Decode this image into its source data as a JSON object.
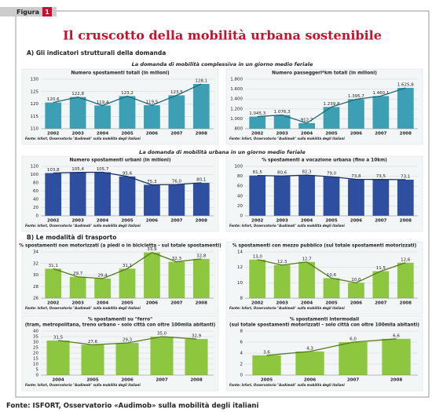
{
  "figure_label": "Figura",
  "figure_number": "1",
  "title": "Il cruscotto della mobilità urbana sostenibile",
  "section_a": "A) Gli indicatori strutturali della domanda",
  "subtitle_a1": "La domanda di mobilità complessiva in un giorno medio feriale",
  "subtitle_a2": "La domanda di mobilità urbana in un giorno medio feriale",
  "section_b": "B) Le modalità di trasporto",
  "footer": "Fonte: ISFORT, Osservatorio «Audimob» sulla mobilità degli italiani",
  "chart_data": [
    {
      "type": "bar",
      "title": "Numero spostamenti totali (in milioni)",
      "source": "Fonte: Isfort, Osservatorio \"Audimob\" sulla mobilità degli italiani",
      "categories": [
        "2002",
        "2003",
        "2004",
        "2005",
        "2006",
        "2007",
        "2008"
      ],
      "values": [
        120.6,
        122.8,
        119.4,
        123.2,
        119.5,
        123.5,
        128.1
      ],
      "value_labels": [
        "120,6",
        "122,8",
        "119,4",
        "123,2",
        "119,5",
        "123,5",
        "128,1"
      ],
      "color": "#3d9fb3",
      "line_color": "#1d6a7a",
      "ylim": [
        110,
        130
      ],
      "yticks": [
        110,
        115,
        120,
        125,
        130
      ]
    },
    {
      "type": "bar",
      "title": "Numero passeggeri*km totali (in milioni)",
      "source": "Fonte: Isfort, Osservatorio \"Audimob\" sulla mobilità degli italiani",
      "categories": [
        "2002",
        "2003",
        "2004",
        "2005",
        "2006",
        "2007",
        "2008"
      ],
      "values": [
        1045.3,
        1076.3,
        912.7,
        1239.8,
        1395.7,
        1460.1,
        1625.8
      ],
      "value_labels": [
        "1.045,3",
        "1.076,3",
        "912,7",
        "1.239,8",
        "1.395,7",
        "1.460,1",
        "1.625,8"
      ],
      "color": "#3d9fb3",
      "line_color": "#1d6a7a",
      "ylim": [
        800,
        1800
      ],
      "yticks": [
        800,
        {
          "value": 1000,
          "label": "1.000"
        },
        {
          "value": 1200,
          "label": "1.200"
        },
        {
          "value": 1400,
          "label": "1.400"
        },
        {
          "value": 1600,
          "label": "1.600"
        },
        {
          "value": 1800,
          "label": "1.800"
        }
      ]
    },
    {
      "type": "bar",
      "title": "Numero spostamenti urbani (in milioni)",
      "source": "Fonte: Isfort, Osservatorio \"Audimob\" sulla mobilità degli italiani",
      "categories": [
        "2002",
        "2003",
        "2004",
        "2005",
        "2006",
        "2007",
        "2008"
      ],
      "values": [
        103.8,
        105.4,
        105.7,
        95.6,
        75.3,
        76.0,
        80.1
      ],
      "value_labels": [
        "103,8",
        "105,4",
        "105,7",
        "95,6",
        "75,3",
        "76,0",
        "80,1"
      ],
      "color": "#2e4f9f",
      "line_color": "#1c2f6b",
      "ylim": [
        0,
        120
      ],
      "yticks": [
        0,
        20,
        40,
        60,
        80,
        100,
        120
      ]
    },
    {
      "type": "bar",
      "title": "% spostamenti a vocazione urbana (fino a 10km)",
      "source": "Fonte: Isfort, Osservatorio \"Audimob\" sulla mobilità degli italiani",
      "categories": [
        "2002",
        "2003",
        "2004",
        "2005",
        "2006",
        "2007",
        "2008"
      ],
      "values": [
        81.5,
        80.6,
        82.3,
        79.0,
        73.8,
        73.5,
        73.1
      ],
      "value_labels": [
        "81,5",
        "80,6",
        "82,3",
        "79,0",
        "73,8",
        "73,5",
        "73,1"
      ],
      "color": "#2e4f9f",
      "line_color": "#1c2f6b",
      "ylim": [
        0,
        100
      ],
      "yticks": [
        0,
        20,
        40,
        60,
        80,
        100
      ]
    },
    {
      "type": "bar",
      "title": "% spostamenti non motorizzati (a piedi o in bicicletta - sul totale spostamenti)",
      "source": "Fonte: Isfort, Osservatorio \"Audimob\" sulla mobilità degli italiani",
      "categories": [
        "2002",
        "2003",
        "2004",
        "2005",
        "2006",
        "2007",
        "2008"
      ],
      "values": [
        31.1,
        29.7,
        29.4,
        31.1,
        33.9,
        32.3,
        32.8
      ],
      "value_labels": [
        "31,1",
        "29,7",
        "29,4",
        "31,1",
        "33,9",
        "32,3",
        "32,8"
      ],
      "color": "#8dc63f",
      "line_color": "#557a1a",
      "ylim": [
        26,
        34
      ],
      "yticks": [
        26,
        28,
        30,
        32,
        34
      ]
    },
    {
      "type": "bar",
      "title": "% spostamenti con mezzo pubblico (sul totale spostamenti motorizzati)",
      "source": "Fonte: Isfort, Osservatorio \"Audimob\" sulla mobilità degli italiani",
      "categories": [
        "2002",
        "2003",
        "2004",
        "2005",
        "2006",
        "2007",
        "2008"
      ],
      "values": [
        13.0,
        12.3,
        12.7,
        10.6,
        10.0,
        11.5,
        12.6
      ],
      "value_labels": [
        "13,0",
        "12,3",
        "12,7",
        "10,6",
        "10,0",
        "11,5",
        "12,6"
      ],
      "color": "#8dc63f",
      "line_color": "#557a1a",
      "ylim": [
        8,
        14
      ],
      "yticks": [
        8,
        10,
        12,
        14
      ]
    },
    {
      "type": "bar",
      "title": "% spostamenti su \"ferro\"",
      "subtitle": "(tram, metropolitana, treno urbano – solo città con oltre 100mila abitanti)",
      "source": "Fonte: Isfort, Osservatorio \"Audimob\" sulla mobilità degli italiani",
      "categories": [
        "2004",
        "2005",
        "2006",
        "2007",
        "2008"
      ],
      "values": [
        31.5,
        27.6,
        29.3,
        35.0,
        32.9
      ],
      "value_labels": [
        "31,5",
        "27,6",
        "29,3",
        "35,0",
        "32,9"
      ],
      "color": "#8dc63f",
      "line_color": "#557a1a",
      "ylim": [
        0,
        40
      ],
      "yticks": [
        0,
        5,
        10,
        15,
        20,
        25,
        30,
        35,
        40
      ]
    },
    {
      "type": "bar",
      "title": "% spostamenti intermodali",
      "subtitle": "(sul totale spostamenti motorizzati – solo città con oltre 100mila abitanti)",
      "source": "Fonte: Isfort, Osservatorio \"Audimob\" sulla mobilità degli italiani",
      "categories": [
        "2005",
        "2006",
        "2007",
        "2008"
      ],
      "values": [
        3.6,
        4.3,
        6.0,
        6.6
      ],
      "value_labels": [
        "3,6",
        "4,3",
        "6,0",
        "6,6"
      ],
      "color": "#8dc63f",
      "line_color": "#557a1a",
      "ylim": [
        0,
        8
      ],
      "yticks": [
        0,
        2,
        4,
        6,
        8
      ]
    }
  ]
}
